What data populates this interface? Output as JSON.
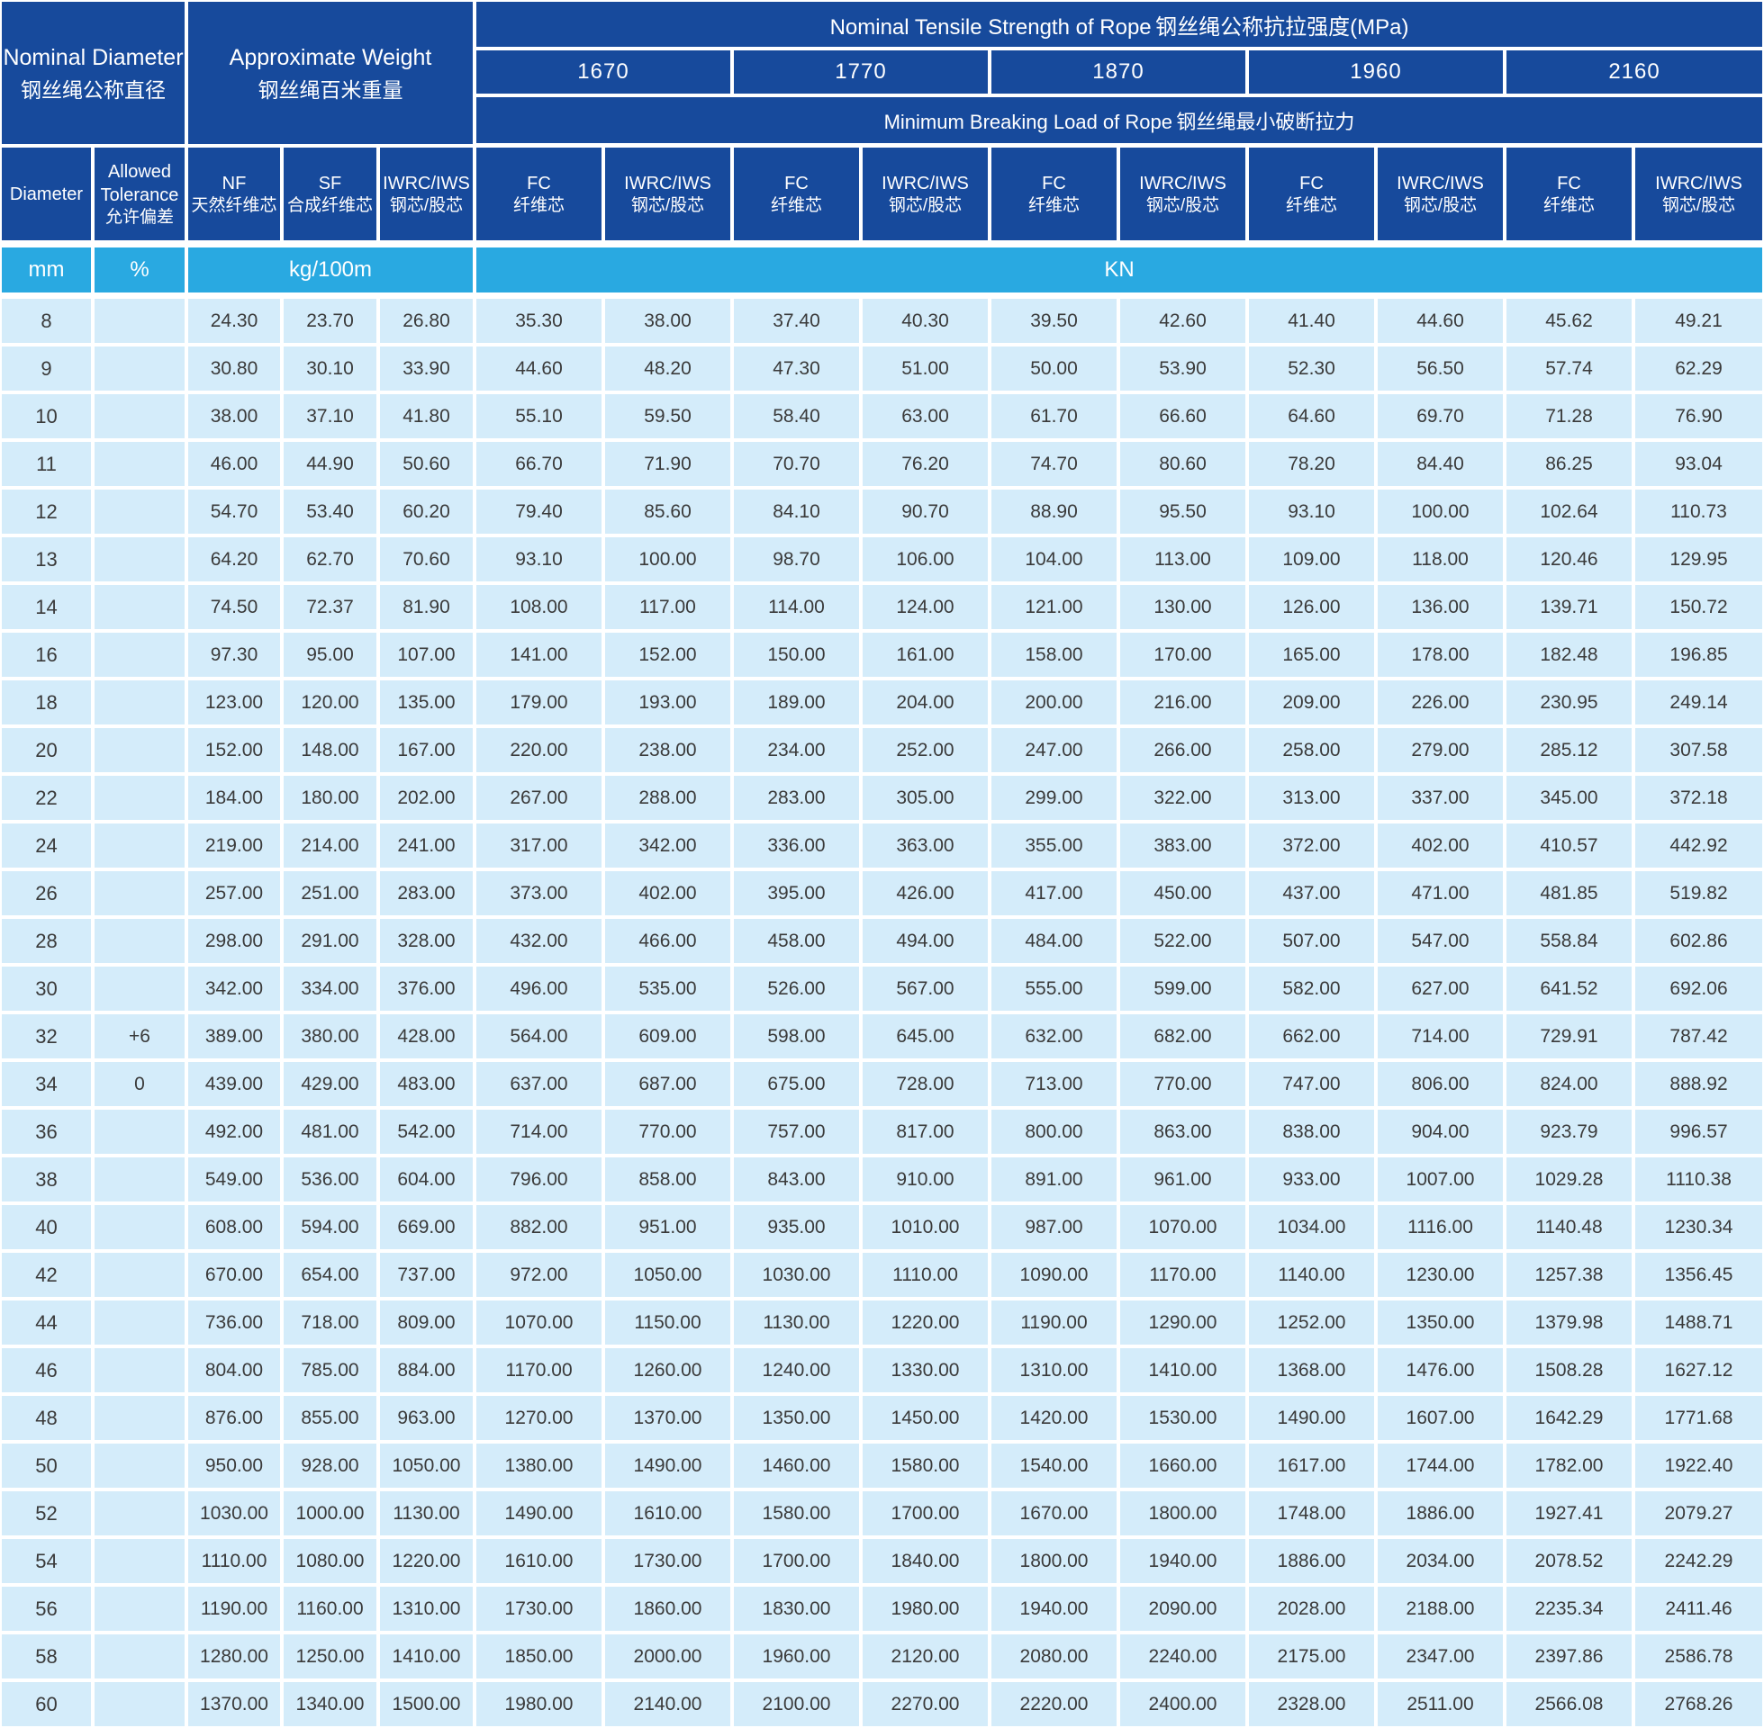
{
  "title_row": {
    "nominal_diameter_en": "Nominal Diameter",
    "nominal_diameter_zh": "钢丝绳公称直径",
    "approx_weight_en": "Approximate Weight",
    "approx_weight_zh": "钢丝绳百米重量",
    "tensile_strength_en": "Nominal Tensile Strength of Rope",
    "tensile_strength_zh": "钢丝绳公称抗拉强度(MPa)"
  },
  "strength_grades": [
    "1670",
    "1770",
    "1870",
    "1960",
    "2160"
  ],
  "breaking_load_row": {
    "en": "Minimum Breaking Load of Rope",
    "zh": "钢丝绳最小破断拉力"
  },
  "column_headers": {
    "diameter": "Diameter",
    "tolerance_en": "Allowed Tolerance",
    "tolerance_zh": "允许偏差",
    "nf_en": "NF",
    "nf_zh": "天然纤维芯",
    "sf_en": "SF",
    "sf_zh": "合成纤维芯",
    "iwrc_en": "IWRC/IWS",
    "iwrc_zh": "钢芯/股芯",
    "fc_en": "FC",
    "fc_zh": "纤维芯"
  },
  "units": {
    "diameter": "mm",
    "tolerance": "%",
    "weight": "kg/100m",
    "load": "KN"
  },
  "colors": {
    "header_blue": "#174a9c",
    "unit_cyan": "#29a9e1",
    "row_light_blue": "#d4ecfa",
    "grid_white": "#ffffff",
    "data_text": "#3a3a3a"
  },
  "rows": [
    {
      "diameter": "8",
      "tolerance": "",
      "values": [
        "24.30",
        "23.70",
        "26.80",
        "35.30",
        "38.00",
        "37.40",
        "40.30",
        "39.50",
        "42.60",
        "41.40",
        "44.60",
        "45.62",
        "49.21"
      ]
    },
    {
      "diameter": "9",
      "tolerance": "",
      "values": [
        "30.80",
        "30.10",
        "33.90",
        "44.60",
        "48.20",
        "47.30",
        "51.00",
        "50.00",
        "53.90",
        "52.30",
        "56.50",
        "57.74",
        "62.29"
      ]
    },
    {
      "diameter": "10",
      "tolerance": "",
      "values": [
        "38.00",
        "37.10",
        "41.80",
        "55.10",
        "59.50",
        "58.40",
        "63.00",
        "61.70",
        "66.60",
        "64.60",
        "69.70",
        "71.28",
        "76.90"
      ]
    },
    {
      "diameter": "11",
      "tolerance": "",
      "values": [
        "46.00",
        "44.90",
        "50.60",
        "66.70",
        "71.90",
        "70.70",
        "76.20",
        "74.70",
        "80.60",
        "78.20",
        "84.40",
        "86.25",
        "93.04"
      ]
    },
    {
      "diameter": "12",
      "tolerance": "",
      "values": [
        "54.70",
        "53.40",
        "60.20",
        "79.40",
        "85.60",
        "84.10",
        "90.70",
        "88.90",
        "95.50",
        "93.10",
        "100.00",
        "102.64",
        "110.73"
      ]
    },
    {
      "diameter": "13",
      "tolerance": "",
      "values": [
        "64.20",
        "62.70",
        "70.60",
        "93.10",
        "100.00",
        "98.70",
        "106.00",
        "104.00",
        "113.00",
        "109.00",
        "118.00",
        "120.46",
        "129.95"
      ]
    },
    {
      "diameter": "14",
      "tolerance": "",
      "values": [
        "74.50",
        "72.37",
        "81.90",
        "108.00",
        "117.00",
        "114.00",
        "124.00",
        "121.00",
        "130.00",
        "126.00",
        "136.00",
        "139.71",
        "150.72"
      ]
    },
    {
      "diameter": "16",
      "tolerance": "",
      "values": [
        "97.30",
        "95.00",
        "107.00",
        "141.00",
        "152.00",
        "150.00",
        "161.00",
        "158.00",
        "170.00",
        "165.00",
        "178.00",
        "182.48",
        "196.85"
      ]
    },
    {
      "diameter": "18",
      "tolerance": "",
      "values": [
        "123.00",
        "120.00",
        "135.00",
        "179.00",
        "193.00",
        "189.00",
        "204.00",
        "200.00",
        "216.00",
        "209.00",
        "226.00",
        "230.95",
        "249.14"
      ]
    },
    {
      "diameter": "20",
      "tolerance": "",
      "values": [
        "152.00",
        "148.00",
        "167.00",
        "220.00",
        "238.00",
        "234.00",
        "252.00",
        "247.00",
        "266.00",
        "258.00",
        "279.00",
        "285.12",
        "307.58"
      ]
    },
    {
      "diameter": "22",
      "tolerance": "",
      "values": [
        "184.00",
        "180.00",
        "202.00",
        "267.00",
        "288.00",
        "283.00",
        "305.00",
        "299.00",
        "322.00",
        "313.00",
        "337.00",
        "345.00",
        "372.18"
      ]
    },
    {
      "diameter": "24",
      "tolerance": "",
      "values": [
        "219.00",
        "214.00",
        "241.00",
        "317.00",
        "342.00",
        "336.00",
        "363.00",
        "355.00",
        "383.00",
        "372.00",
        "402.00",
        "410.57",
        "442.92"
      ]
    },
    {
      "diameter": "26",
      "tolerance": "",
      "values": [
        "257.00",
        "251.00",
        "283.00",
        "373.00",
        "402.00",
        "395.00",
        "426.00",
        "417.00",
        "450.00",
        "437.00",
        "471.00",
        "481.85",
        "519.82"
      ]
    },
    {
      "diameter": "28",
      "tolerance": "",
      "values": [
        "298.00",
        "291.00",
        "328.00",
        "432.00",
        "466.00",
        "458.00",
        "494.00",
        "484.00",
        "522.00",
        "507.00",
        "547.00",
        "558.84",
        "602.86"
      ]
    },
    {
      "diameter": "30",
      "tolerance": "",
      "values": [
        "342.00",
        "334.00",
        "376.00",
        "496.00",
        "535.00",
        "526.00",
        "567.00",
        "555.00",
        "599.00",
        "582.00",
        "627.00",
        "641.52",
        "692.06"
      ]
    },
    {
      "diameter": "32",
      "tolerance": "+6",
      "values": [
        "389.00",
        "380.00",
        "428.00",
        "564.00",
        "609.00",
        "598.00",
        "645.00",
        "632.00",
        "682.00",
        "662.00",
        "714.00",
        "729.91",
        "787.42"
      ]
    },
    {
      "diameter": "34",
      "tolerance": "0",
      "values": [
        "439.00",
        "429.00",
        "483.00",
        "637.00",
        "687.00",
        "675.00",
        "728.00",
        "713.00",
        "770.00",
        "747.00",
        "806.00",
        "824.00",
        "888.92"
      ]
    },
    {
      "diameter": "36",
      "tolerance": "",
      "values": [
        "492.00",
        "481.00",
        "542.00",
        "714.00",
        "770.00",
        "757.00",
        "817.00",
        "800.00",
        "863.00",
        "838.00",
        "904.00",
        "923.79",
        "996.57"
      ]
    },
    {
      "diameter": "38",
      "tolerance": "",
      "values": [
        "549.00",
        "536.00",
        "604.00",
        "796.00",
        "858.00",
        "843.00",
        "910.00",
        "891.00",
        "961.00",
        "933.00",
        "1007.00",
        "1029.28",
        "1110.38"
      ]
    },
    {
      "diameter": "40",
      "tolerance": "",
      "values": [
        "608.00",
        "594.00",
        "669.00",
        "882.00",
        "951.00",
        "935.00",
        "1010.00",
        "987.00",
        "1070.00",
        "1034.00",
        "1116.00",
        "1140.48",
        "1230.34"
      ]
    },
    {
      "diameter": "42",
      "tolerance": "",
      "values": [
        "670.00",
        "654.00",
        "737.00",
        "972.00",
        "1050.00",
        "1030.00",
        "1110.00",
        "1090.00",
        "1170.00",
        "1140.00",
        "1230.00",
        "1257.38",
        "1356.45"
      ]
    },
    {
      "diameter": "44",
      "tolerance": "",
      "values": [
        "736.00",
        "718.00",
        "809.00",
        "1070.00",
        "1150.00",
        "1130.00",
        "1220.00",
        "1190.00",
        "1290.00",
        "1252.00",
        "1350.00",
        "1379.98",
        "1488.71"
      ]
    },
    {
      "diameter": "46",
      "tolerance": "",
      "values": [
        "804.00",
        "785.00",
        "884.00",
        "1170.00",
        "1260.00",
        "1240.00",
        "1330.00",
        "1310.00",
        "1410.00",
        "1368.00",
        "1476.00",
        "1508.28",
        "1627.12"
      ]
    },
    {
      "diameter": "48",
      "tolerance": "",
      "values": [
        "876.00",
        "855.00",
        "963.00",
        "1270.00",
        "1370.00",
        "1350.00",
        "1450.00",
        "1420.00",
        "1530.00",
        "1490.00",
        "1607.00",
        "1642.29",
        "1771.68"
      ]
    },
    {
      "diameter": "50",
      "tolerance": "",
      "values": [
        "950.00",
        "928.00",
        "1050.00",
        "1380.00",
        "1490.00",
        "1460.00",
        "1580.00",
        "1540.00",
        "1660.00",
        "1617.00",
        "1744.00",
        "1782.00",
        "1922.40"
      ]
    },
    {
      "diameter": "52",
      "tolerance": "",
      "values": [
        "1030.00",
        "1000.00",
        "1130.00",
        "1490.00",
        "1610.00",
        "1580.00",
        "1700.00",
        "1670.00",
        "1800.00",
        "1748.00",
        "1886.00",
        "1927.41",
        "2079.27"
      ]
    },
    {
      "diameter": "54",
      "tolerance": "",
      "values": [
        "1110.00",
        "1080.00",
        "1220.00",
        "1610.00",
        "1730.00",
        "1700.00",
        "1840.00",
        "1800.00",
        "1940.00",
        "1886.00",
        "2034.00",
        "2078.52",
        "2242.29"
      ]
    },
    {
      "diameter": "56",
      "tolerance": "",
      "values": [
        "1190.00",
        "1160.00",
        "1310.00",
        "1730.00",
        "1860.00",
        "1830.00",
        "1980.00",
        "1940.00",
        "2090.00",
        "2028.00",
        "2188.00",
        "2235.34",
        "2411.46"
      ]
    },
    {
      "diameter": "58",
      "tolerance": "",
      "values": [
        "1280.00",
        "1250.00",
        "1410.00",
        "1850.00",
        "2000.00",
        "1960.00",
        "2120.00",
        "2080.00",
        "2240.00",
        "2175.00",
        "2347.00",
        "2397.86",
        "2586.78"
      ]
    },
    {
      "diameter": "60",
      "tolerance": "",
      "values": [
        "1370.00",
        "1340.00",
        "1500.00",
        "1980.00",
        "2140.00",
        "2100.00",
        "2270.00",
        "2220.00",
        "2400.00",
        "2328.00",
        "2511.00",
        "2566.08",
        "2768.26"
      ]
    }
  ]
}
